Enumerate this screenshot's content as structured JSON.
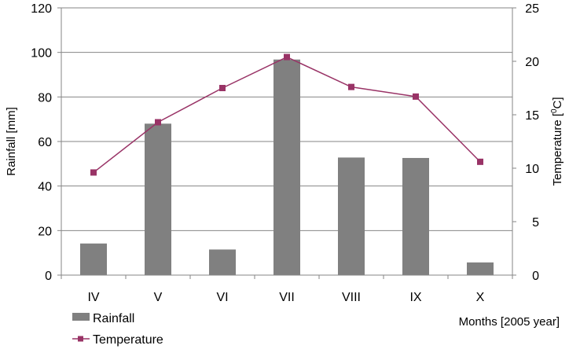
{
  "chart_data": {
    "type": "bar",
    "categories": [
      "IV",
      "V",
      "VI",
      "VII",
      "VIII",
      "IX",
      "X"
    ],
    "series": [
      {
        "name": "Rainfall",
        "type": "bar",
        "axis": "left",
        "color": "#808080",
        "values": [
          14.2,
          68.0,
          11.5,
          96.8,
          52.8,
          52.6,
          5.7
        ]
      },
      {
        "name": "Temperature",
        "type": "line",
        "axis": "right",
        "color": "#993366",
        "marker": "square",
        "values": [
          9.6,
          14.3,
          17.5,
          20.4,
          17.6,
          16.7,
          10.6
        ]
      }
    ],
    "xlabel": "Months [2005 year]",
    "ylabel": "Rainfall [mm]",
    "y2label_prefix": "Temperature [",
    "y2label_sup": "0",
    "y2label_suffix": "C]",
    "ylim": [
      0,
      120
    ],
    "y2lim": [
      0,
      25
    ],
    "yticks": [
      "0",
      "20",
      "40",
      "60",
      "80",
      "100",
      "120"
    ],
    "y2ticks": [
      "0",
      "5",
      "10",
      "15",
      "20",
      "25"
    ],
    "grid": true,
    "legend_position": "bottom-left"
  }
}
